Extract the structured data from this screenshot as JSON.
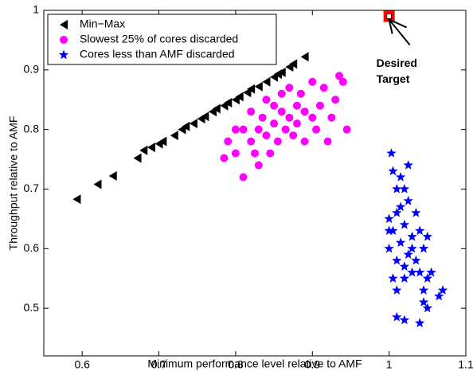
{
  "chart_data": {
    "type": "scatter",
    "xlabel": "Minimum performance level relative to AMF",
    "ylabel": "Throughput relative to AMF",
    "xlim": [
      0.55,
      1.1
    ],
    "xticks": [
      0.6,
      0.7,
      0.8,
      0.9,
      1,
      1.1
    ],
    "ylim": [
      0.42,
      1
    ],
    "yticks": [
      0.5,
      0.6,
      0.7,
      0.8,
      0.9,
      1
    ],
    "legend": "upper left",
    "series": [
      {
        "name": "Min−Max",
        "color": "#000000",
        "marker": "triangle-left",
        "x": [
          0.593,
          0.62,
          0.64,
          0.672,
          0.68,
          0.69,
          0.7,
          0.705,
          0.72,
          0.73,
          0.735,
          0.745,
          0.755,
          0.76,
          0.77,
          0.775,
          0.785,
          0.79,
          0.8,
          0.805,
          0.815,
          0.82,
          0.83,
          0.84,
          0.85,
          0.855,
          0.86,
          0.87,
          0.875,
          0.89
        ],
        "y": [
          0.683,
          0.708,
          0.722,
          0.752,
          0.765,
          0.77,
          0.776,
          0.78,
          0.79,
          0.8,
          0.805,
          0.81,
          0.818,
          0.822,
          0.83,
          0.835,
          0.84,
          0.845,
          0.85,
          0.855,
          0.862,
          0.868,
          0.872,
          0.88,
          0.888,
          0.893,
          0.896,
          0.905,
          0.91,
          0.922
        ]
      },
      {
        "name": "Slowest 25% of cores discarded",
        "color": "#ff00ff",
        "marker": "circle",
        "x": [
          0.785,
          0.79,
          0.8,
          0.8,
          0.81,
          0.81,
          0.82,
          0.82,
          0.825,
          0.83,
          0.835,
          0.84,
          0.84,
          0.845,
          0.85,
          0.85,
          0.855,
          0.86,
          0.86,
          0.865,
          0.87,
          0.87,
          0.875,
          0.88,
          0.88,
          0.885,
          0.89,
          0.89,
          0.9,
          0.9,
          0.905,
          0.91,
          0.915,
          0.92,
          0.925,
          0.93,
          0.935,
          0.94,
          0.945,
          0.83
        ],
        "y": [
          0.752,
          0.78,
          0.76,
          0.8,
          0.72,
          0.8,
          0.78,
          0.83,
          0.76,
          0.8,
          0.82,
          0.79,
          0.85,
          0.76,
          0.81,
          0.84,
          0.78,
          0.83,
          0.86,
          0.8,
          0.82,
          0.87,
          0.79,
          0.84,
          0.81,
          0.86,
          0.78,
          0.83,
          0.88,
          0.82,
          0.8,
          0.84,
          0.87,
          0.78,
          0.82,
          0.85,
          0.89,
          0.88,
          0.8,
          0.74
        ]
      },
      {
        "name": "Cores less than AMF discarded",
        "color": "#0000ff",
        "marker": "star",
        "x": [
          1.003,
          1.005,
          1.01,
          1.015,
          1.02,
          1.0,
          1.005,
          1.01,
          1.02,
          1.025,
          1.03,
          1.0,
          1.01,
          1.015,
          1.02,
          1.03,
          1.035,
          1.04,
          1.045,
          1.05,
          1.005,
          1.01,
          1.02,
          1.03,
          1.04,
          1.045,
          1.05,
          1.055,
          1.01,
          1.02,
          1.04,
          1.045,
          1.05,
          1.065,
          1.07,
          1.025,
          1.035,
          1.0,
          1.015,
          1.025
        ],
        "y": [
          0.76,
          0.73,
          0.7,
          0.72,
          0.7,
          0.65,
          0.63,
          0.66,
          0.64,
          0.68,
          0.62,
          0.6,
          0.58,
          0.61,
          0.57,
          0.6,
          0.66,
          0.63,
          0.6,
          0.62,
          0.55,
          0.53,
          0.55,
          0.56,
          0.56,
          0.53,
          0.55,
          0.56,
          0.485,
          0.48,
          0.475,
          0.51,
          0.5,
          0.52,
          0.53,
          0.59,
          0.58,
          0.63,
          0.67,
          0.74
        ]
      }
    ],
    "target": {
      "x": 1,
      "y": 0.99,
      "color": "#ff0000"
    },
    "annotation": [
      "Desired",
      "Target"
    ]
  }
}
